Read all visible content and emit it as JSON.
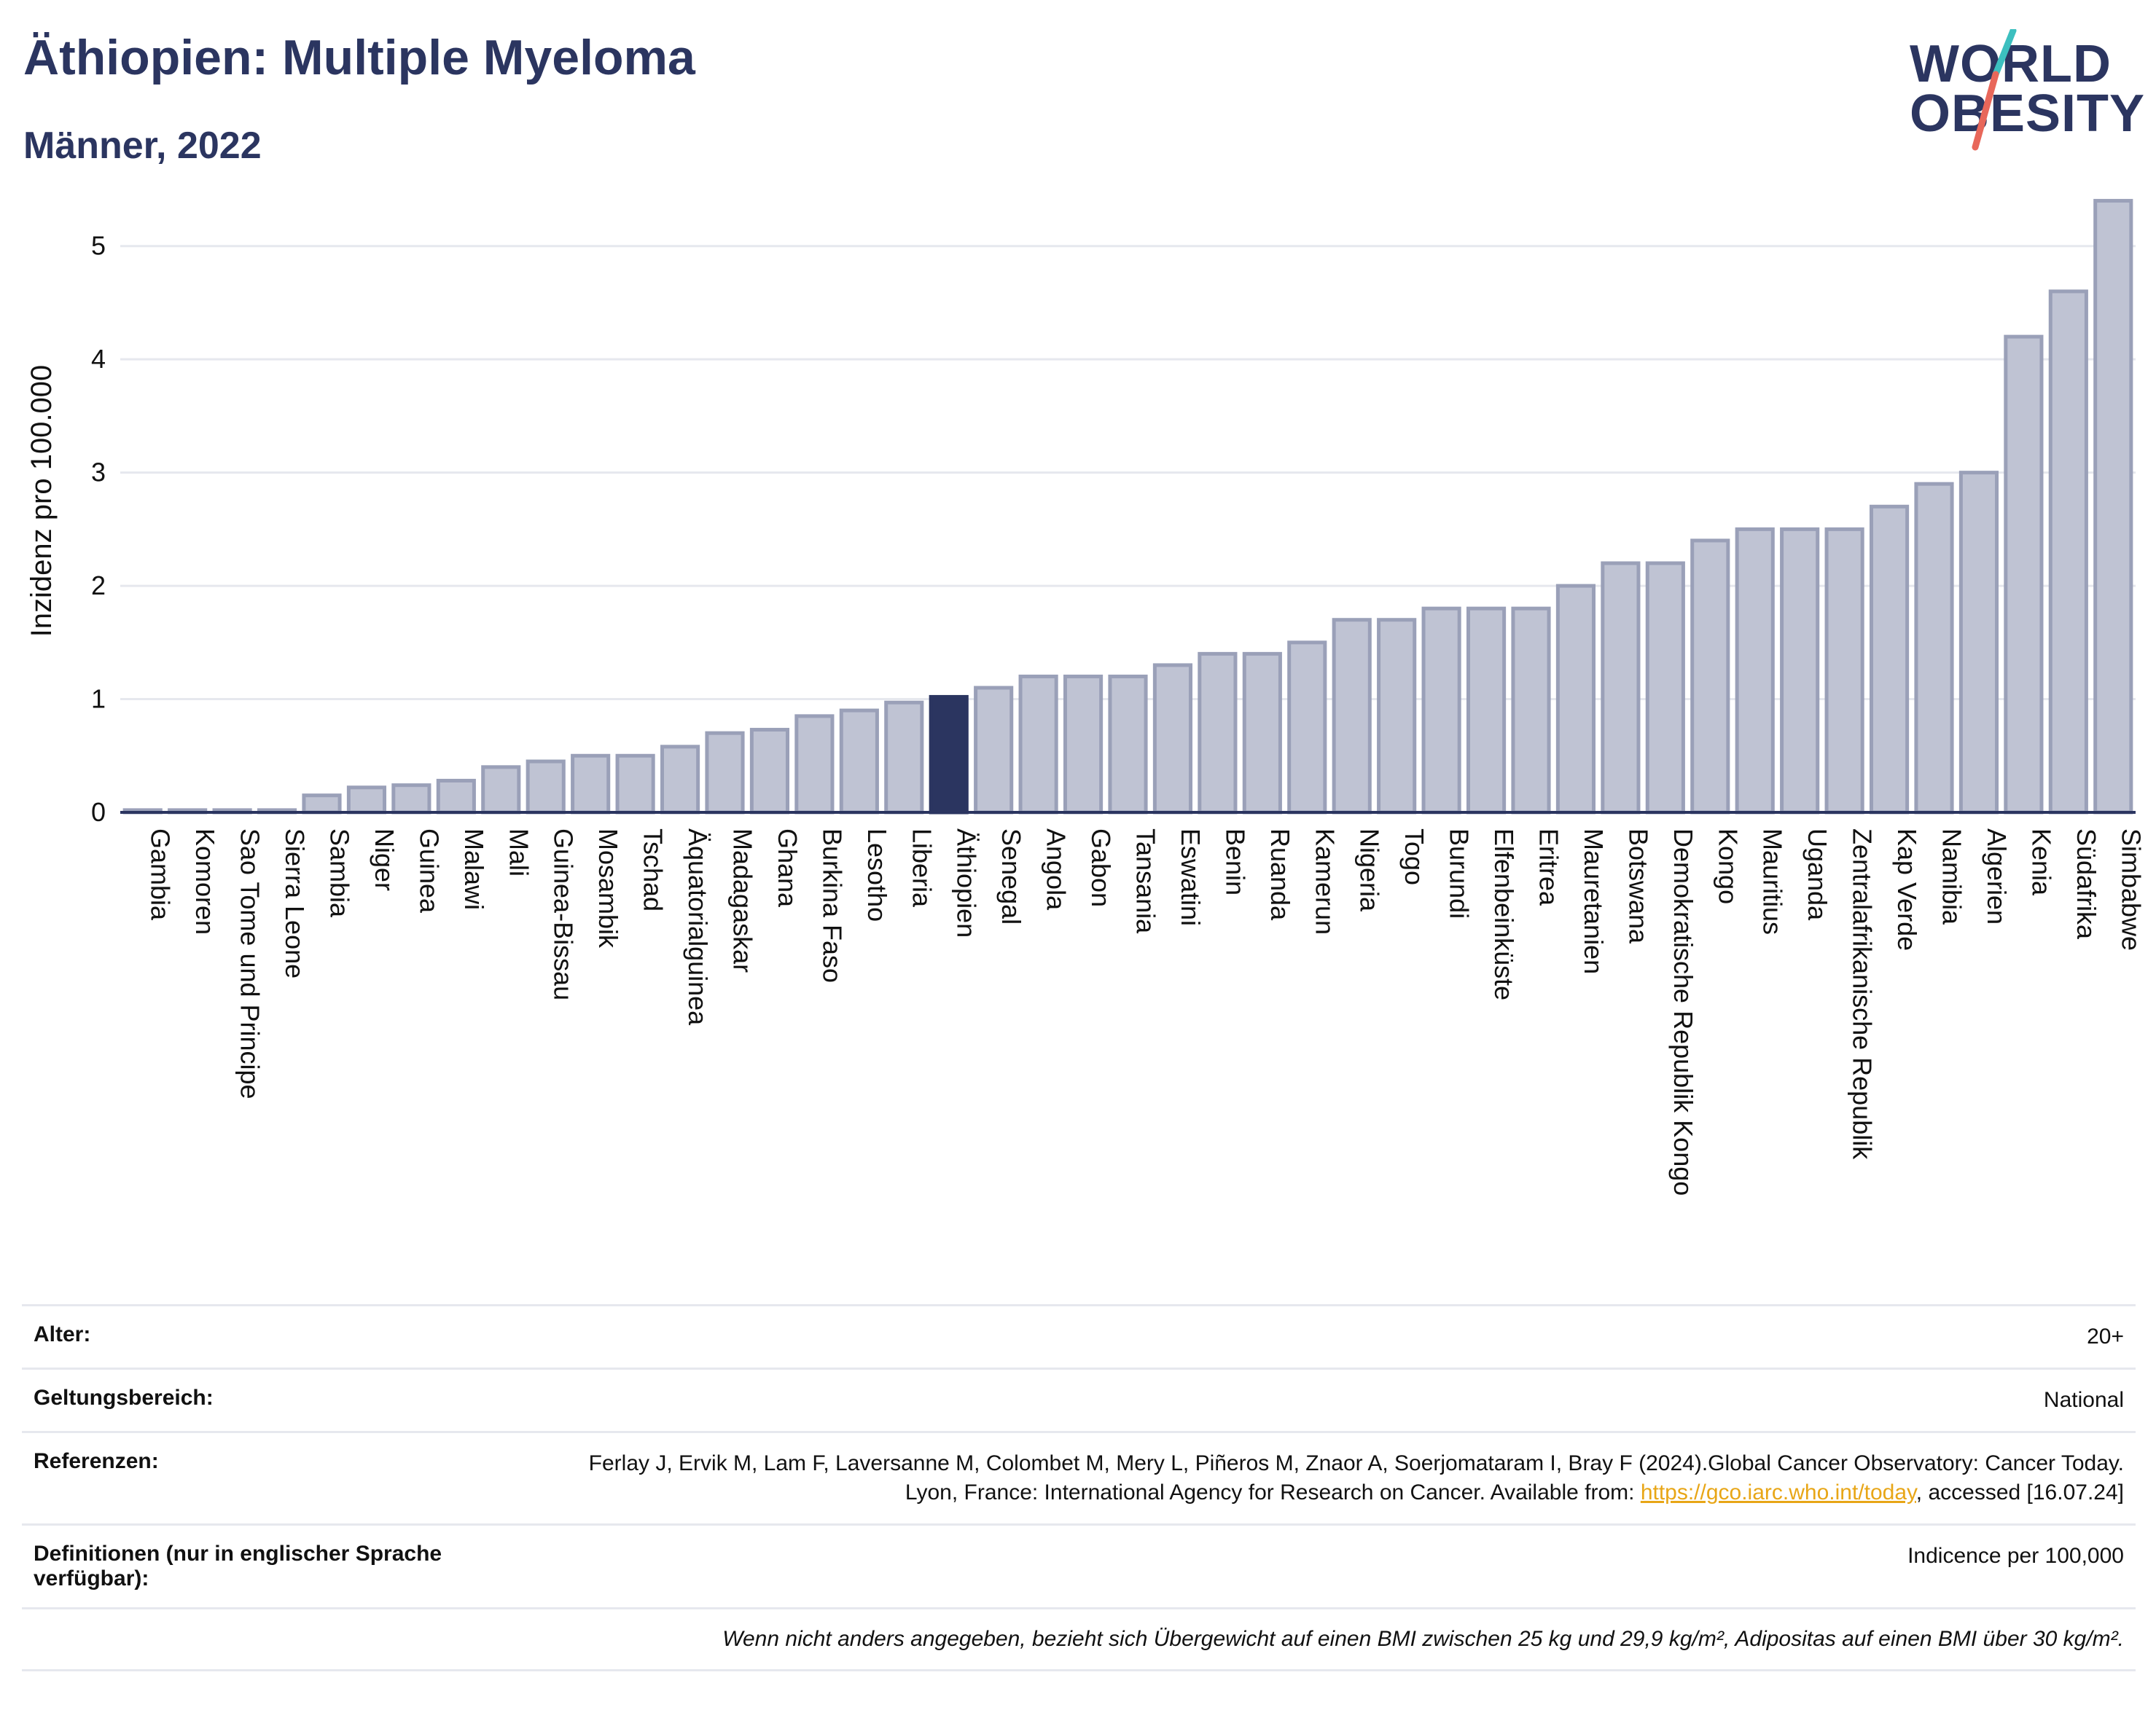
{
  "header": {
    "title": "Äthiopien: Multiple Myeloma",
    "subtitle": "Männer, 2022"
  },
  "logo": {
    "line1": "WORLD",
    "line2": "OBESITY",
    "accent_teal": "#3cbfbf",
    "accent_red": "#e8675a"
  },
  "colors": {
    "bar": "#bfc3d3",
    "bar_stroke": "#9aa0b8",
    "highlight": "#2b3560",
    "grid": "#e6e8ee",
    "axis": "#2b3560"
  },
  "chart_data": {
    "type": "bar",
    "ylabel": "Inzidenz pro 100.000",
    "ylim": [
      0,
      5.5
    ],
    "yticks": [
      0,
      1,
      2,
      3,
      4,
      5
    ],
    "highlight": "Äthiopien",
    "categories": [
      "Gambia",
      "Komoren",
      "Sao Tome und Principe",
      "Sierra Leone",
      "Sambia",
      "Niger",
      "Guinea",
      "Malawi",
      "Mali",
      "Guinea-Bissau",
      "Mosambik",
      "Tschad",
      "Äquatorialguinea",
      "Madagaskar",
      "Ghana",
      "Burkina Faso",
      "Lesotho",
      "Liberia",
      "Äthiopien",
      "Senegal",
      "Angola",
      "Gabon",
      "Tansania",
      "Eswatini",
      "Benin",
      "Ruanda",
      "Kamerun",
      "Nigeria",
      "Togo",
      "Burundi",
      "Elfenbeinküste",
      "Eritrea",
      "Mauretanien",
      "Botswana",
      "Demokratische Republik Kongo",
      "Kongo",
      "Mauritius",
      "Uganda",
      "Zentralafrikanische Republik",
      "Kap Verde",
      "Namibia",
      "Algerien",
      "Kenia",
      "Südafrika",
      "Simbabwe"
    ],
    "values": [
      0.02,
      0.02,
      0.02,
      0.02,
      0.15,
      0.22,
      0.24,
      0.28,
      0.4,
      0.45,
      0.5,
      0.5,
      0.58,
      0.7,
      0.73,
      0.85,
      0.9,
      0.97,
      1.02,
      1.1,
      1.2,
      1.2,
      1.2,
      1.3,
      1.4,
      1.4,
      1.5,
      1.7,
      1.7,
      1.8,
      1.8,
      1.8,
      2.0,
      2.2,
      2.2,
      2.4,
      2.5,
      2.5,
      2.5,
      2.7,
      2.9,
      3.0,
      4.2,
      4.6,
      5.4
    ]
  },
  "meta": {
    "age_label": "Alter:",
    "age_value": "20+",
    "scope_label": "Geltungsbereich:",
    "scope_value": "National",
    "ref_label": "Referenzen:",
    "ref_text_1": "Ferlay J, Ervik M, Lam F, Laversanne M, Colombet M, Mery L, Piñeros M, Znaor A, Soerjomataram I, Bray F (2024).Global Cancer Observatory: Cancer Today. Lyon, France: International Agency for Research on Cancer. Available from: ",
    "ref_link": "https://gco.iarc.who.int/today",
    "ref_text_2": ", accessed [16.07.24]",
    "def_label": "Definitionen (nur in englischer Sprache verfügbar):",
    "def_value": "Indicence per 100,000",
    "note": "Wenn nicht anders angegeben, bezieht sich Übergewicht auf einen BMI zwischen 25 kg und 29,9 kg/m², Adipositas auf einen BMI über 30 kg/m²."
  }
}
